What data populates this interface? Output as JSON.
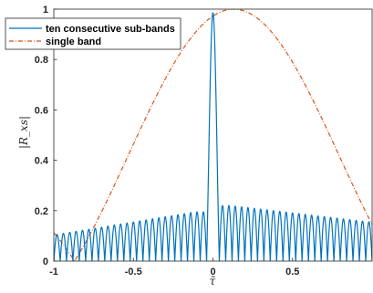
{
  "chart_data": {
    "type": "line",
    "title": "",
    "xlabel": "τ̃",
    "ylabel": "|R_xs|",
    "xlim": [
      -1,
      1
    ],
    "ylim": [
      0,
      1
    ],
    "x_ticks": [
      -1,
      -0.5,
      0,
      0.5
    ],
    "x_tick_labels": [
      "-1",
      "-0.5",
      "0",
      "0.5"
    ],
    "y_ticks": [
      0,
      0.2,
      0.4,
      0.6,
      0.8,
      1
    ],
    "y_tick_labels": [
      "0",
      "0.2",
      "0.4",
      "0.6",
      "0.8",
      "1"
    ],
    "grid": false,
    "legend_position": "top-left",
    "series": [
      {
        "name": "ten consecutive sub-bands",
        "color": "#0072BD",
        "style": "solid",
        "model": "sinc-product",
        "N": 10,
        "center": 0,
        "peak": 0.985,
        "main_lobe_halfwidth": 0.04,
        "sidelobe_peaks": [
          {
            "x": -0.985,
            "y": 0.105
          },
          {
            "x": -0.115,
            "y": 0.195
          },
          {
            "x": 0.115,
            "y": 0.22
          },
          {
            "x": 0.985,
            "y": 0.155
          }
        ]
      },
      {
        "name": "single band",
        "color": "#D95319",
        "style": "dash-dot",
        "model": "sinc",
        "peak_x": 0.13,
        "peak": 1.0,
        "zero_x": -0.87,
        "endpoint_values": [
          {
            "x": -1,
            "y": 0.1
          },
          {
            "x": 1,
            "y": 0.16
          }
        ]
      }
    ]
  }
}
